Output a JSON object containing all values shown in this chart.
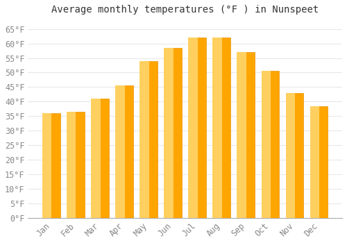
{
  "title": "Average monthly temperatures (°F ) in Nunspeet",
  "months": [
    "Jan",
    "Feb",
    "Mar",
    "Apr",
    "May",
    "Jun",
    "Jul",
    "Aug",
    "Sep",
    "Oct",
    "Nov",
    "Dec"
  ],
  "values": [
    36,
    36.5,
    41,
    45.5,
    54,
    58.5,
    62,
    62,
    57,
    50.5,
    43,
    38.5
  ],
  "bar_color": "#FFA500",
  "bar_edge_color": "#E8940A",
  "ylim": [
    0,
    68
  ],
  "yticks": [
    0,
    5,
    10,
    15,
    20,
    25,
    30,
    35,
    40,
    45,
    50,
    55,
    60,
    65
  ],
  "background_color": "#FFFFFF",
  "grid_color": "#E8E8E8",
  "title_fontsize": 10,
  "tick_fontsize": 8.5,
  "tick_color": "#888888"
}
